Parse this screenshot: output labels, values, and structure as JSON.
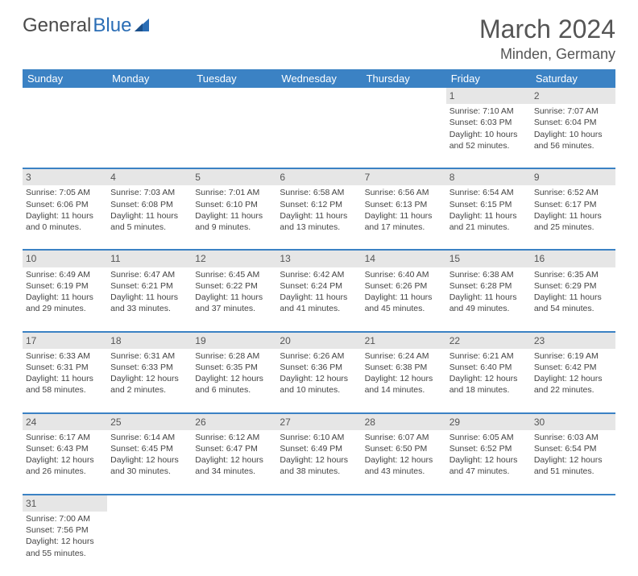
{
  "logo": {
    "text1": "General",
    "text2": "Blue"
  },
  "title": "March 2024",
  "location": "Minden, Germany",
  "weekdays": [
    "Sunday",
    "Monday",
    "Tuesday",
    "Wednesday",
    "Thursday",
    "Friday",
    "Saturday"
  ],
  "colors": {
    "header_bg": "#3b82c4",
    "header_text": "#ffffff",
    "daynum_bg": "#e6e6e6",
    "divider": "#3b82c4",
    "logo_blue": "#2a6db5"
  },
  "weeks": [
    [
      null,
      null,
      null,
      null,
      null,
      {
        "n": "1",
        "sr": "7:10 AM",
        "ss": "6:03 PM",
        "dh": "10",
        "dm": "52"
      },
      {
        "n": "2",
        "sr": "7:07 AM",
        "ss": "6:04 PM",
        "dh": "10",
        "dm": "56"
      }
    ],
    [
      {
        "n": "3",
        "sr": "7:05 AM",
        "ss": "6:06 PM",
        "dh": "11",
        "dm": "0"
      },
      {
        "n": "4",
        "sr": "7:03 AM",
        "ss": "6:08 PM",
        "dh": "11",
        "dm": "5"
      },
      {
        "n": "5",
        "sr": "7:01 AM",
        "ss": "6:10 PM",
        "dh": "11",
        "dm": "9"
      },
      {
        "n": "6",
        "sr": "6:58 AM",
        "ss": "6:12 PM",
        "dh": "11",
        "dm": "13"
      },
      {
        "n": "7",
        "sr": "6:56 AM",
        "ss": "6:13 PM",
        "dh": "11",
        "dm": "17"
      },
      {
        "n": "8",
        "sr": "6:54 AM",
        "ss": "6:15 PM",
        "dh": "11",
        "dm": "21"
      },
      {
        "n": "9",
        "sr": "6:52 AM",
        "ss": "6:17 PM",
        "dh": "11",
        "dm": "25"
      }
    ],
    [
      {
        "n": "10",
        "sr": "6:49 AM",
        "ss": "6:19 PM",
        "dh": "11",
        "dm": "29"
      },
      {
        "n": "11",
        "sr": "6:47 AM",
        "ss": "6:21 PM",
        "dh": "11",
        "dm": "33"
      },
      {
        "n": "12",
        "sr": "6:45 AM",
        "ss": "6:22 PM",
        "dh": "11",
        "dm": "37"
      },
      {
        "n": "13",
        "sr": "6:42 AM",
        "ss": "6:24 PM",
        "dh": "11",
        "dm": "41"
      },
      {
        "n": "14",
        "sr": "6:40 AM",
        "ss": "6:26 PM",
        "dh": "11",
        "dm": "45"
      },
      {
        "n": "15",
        "sr": "6:38 AM",
        "ss": "6:28 PM",
        "dh": "11",
        "dm": "49"
      },
      {
        "n": "16",
        "sr": "6:35 AM",
        "ss": "6:29 PM",
        "dh": "11",
        "dm": "54"
      }
    ],
    [
      {
        "n": "17",
        "sr": "6:33 AM",
        "ss": "6:31 PM",
        "dh": "11",
        "dm": "58"
      },
      {
        "n": "18",
        "sr": "6:31 AM",
        "ss": "6:33 PM",
        "dh": "12",
        "dm": "2"
      },
      {
        "n": "19",
        "sr": "6:28 AM",
        "ss": "6:35 PM",
        "dh": "12",
        "dm": "6"
      },
      {
        "n": "20",
        "sr": "6:26 AM",
        "ss": "6:36 PM",
        "dh": "12",
        "dm": "10"
      },
      {
        "n": "21",
        "sr": "6:24 AM",
        "ss": "6:38 PM",
        "dh": "12",
        "dm": "14"
      },
      {
        "n": "22",
        "sr": "6:21 AM",
        "ss": "6:40 PM",
        "dh": "12",
        "dm": "18"
      },
      {
        "n": "23",
        "sr": "6:19 AM",
        "ss": "6:42 PM",
        "dh": "12",
        "dm": "22"
      }
    ],
    [
      {
        "n": "24",
        "sr": "6:17 AM",
        "ss": "6:43 PM",
        "dh": "12",
        "dm": "26"
      },
      {
        "n": "25",
        "sr": "6:14 AM",
        "ss": "6:45 PM",
        "dh": "12",
        "dm": "30"
      },
      {
        "n": "26",
        "sr": "6:12 AM",
        "ss": "6:47 PM",
        "dh": "12",
        "dm": "34"
      },
      {
        "n": "27",
        "sr": "6:10 AM",
        "ss": "6:49 PM",
        "dh": "12",
        "dm": "38"
      },
      {
        "n": "28",
        "sr": "6:07 AM",
        "ss": "6:50 PM",
        "dh": "12",
        "dm": "43"
      },
      {
        "n": "29",
        "sr": "6:05 AM",
        "ss": "6:52 PM",
        "dh": "12",
        "dm": "47"
      },
      {
        "n": "30",
        "sr": "6:03 AM",
        "ss": "6:54 PM",
        "dh": "12",
        "dm": "51"
      }
    ],
    [
      {
        "n": "31",
        "sr": "7:00 AM",
        "ss": "7:56 PM",
        "dh": "12",
        "dm": "55"
      },
      null,
      null,
      null,
      null,
      null,
      null
    ]
  ],
  "labels": {
    "sunrise": "Sunrise:",
    "sunset": "Sunset:",
    "daylight": "Daylight:",
    "hours": "hours",
    "and": "and",
    "minutes": "minutes."
  }
}
